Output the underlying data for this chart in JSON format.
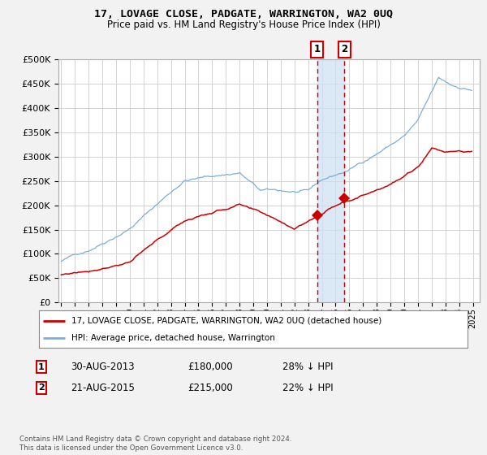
{
  "title": "17, LOVAGE CLOSE, PADGATE, WARRINGTON, WA2 0UQ",
  "subtitle": "Price paid vs. HM Land Registry's House Price Index (HPI)",
  "background_color": "#f2f2f2",
  "plot_bg_color": "#ffffff",
  "grid_color": "#cccccc",
  "hpi_color": "#7aaedc",
  "price_color": "#cc0000",
  "sale1_date_num": 2013.66,
  "sale1_price": 180000,
  "sale1_label": "1",
  "sale2_date_num": 2015.64,
  "sale2_price": 215000,
  "sale2_label": "2",
  "legend_line1": "17, LOVAGE CLOSE, PADGATE, WARRINGTON, WA2 0UQ (detached house)",
  "legend_line2": "HPI: Average price, detached house, Warrington",
  "table_row1": [
    "1",
    "30-AUG-2013",
    "£180,000",
    "28% ↓ HPI"
  ],
  "table_row2": [
    "2",
    "21-AUG-2015",
    "£215,000",
    "22% ↓ HPI"
  ],
  "footnote": "Contains HM Land Registry data © Crown copyright and database right 2024.\nThis data is licensed under the Open Government Licence v3.0.",
  "ylim": [
    0,
    500000
  ],
  "xlim_start": 1994.8,
  "xlim_end": 2025.5
}
